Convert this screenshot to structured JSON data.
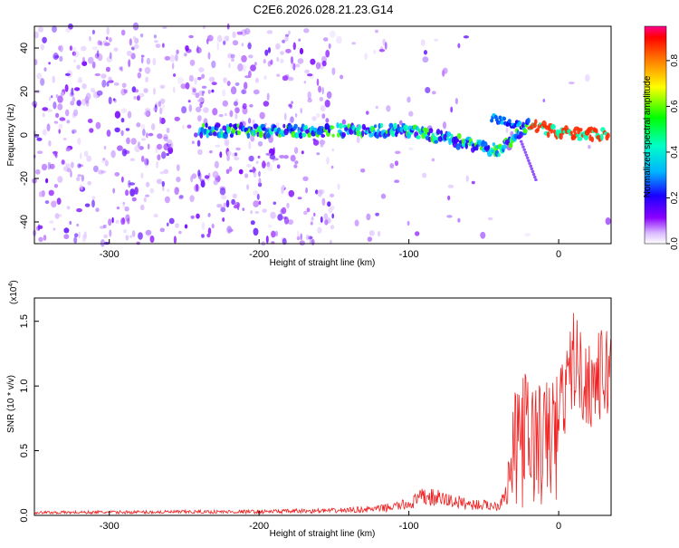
{
  "page_title": "C2E6.2026.028.21.23.G14",
  "chart_data": [
    {
      "type": "heatmap",
      "title": "C2E6.2026.028.21.23.G14",
      "xlabel": "Height of straight line (km)",
      "ylabel": "Frequency (Hz)",
      "xlim": [
        -350,
        35
      ],
      "ylim": [
        -50,
        50
      ],
      "xticks": [
        -300,
        -200,
        -100,
        0
      ],
      "yticks": [
        -40,
        -20,
        0,
        20,
        40
      ],
      "colorbar": {
        "label": "Normalized spectral amplitude",
        "range": [
          0.0,
          0.95
        ],
        "ticks": [
          "0.0",
          "0.2",
          "0.4",
          "0.6",
          "0.8"
        ]
      },
      "features": [
        {
          "name": "low-frequency trace",
          "x": [
            -240,
            -150,
            -100,
            -60,
            -40,
            -20,
            0,
            35
          ],
          "freq": [
            2,
            2,
            2,
            -4,
            -7,
            5,
            1,
            0
          ]
        },
        {
          "name": "high-amplitude segment",
          "x": [
            -20,
            35
          ],
          "freq": [
            1,
            0
          ],
          "amplitude": 0.9
        }
      ]
    },
    {
      "type": "line",
      "xlabel": "Height of straight line (km)",
      "ylabel": "SNR (10 * v/v)",
      "y_scale_label": "(x10",
      "y_scale_exponent": "4",
      "y_scale_suffix": ")",
      "xlim": [
        -350,
        35
      ],
      "ylim": [
        0,
        1.68
      ],
      "xticks": [
        -300,
        -200,
        -100,
        0
      ],
      "yticks": [
        "0.0",
        "0.5",
        "1.0",
        "1.5"
      ],
      "series": [
        {
          "name": "SNR",
          "color": "#ee2222",
          "envelope_x": [
            -350,
            -200,
            -150,
            -120,
            -100,
            -90,
            -80,
            -60,
            -40,
            -35,
            -30,
            -25,
            -20,
            -15,
            -10,
            -5,
            0,
            5,
            10,
            15,
            20,
            25,
            30,
            35
          ],
          "envelope_y": [
            0.03,
            0.04,
            0.05,
            0.07,
            0.12,
            0.2,
            0.18,
            0.12,
            0.1,
            0.3,
            0.85,
            1.2,
            1.0,
            1.05,
            0.95,
            1.15,
            1.05,
            1.15,
            1.5,
            1.3,
            1.22,
            1.28,
            1.32,
            1.36
          ]
        }
      ]
    }
  ]
}
